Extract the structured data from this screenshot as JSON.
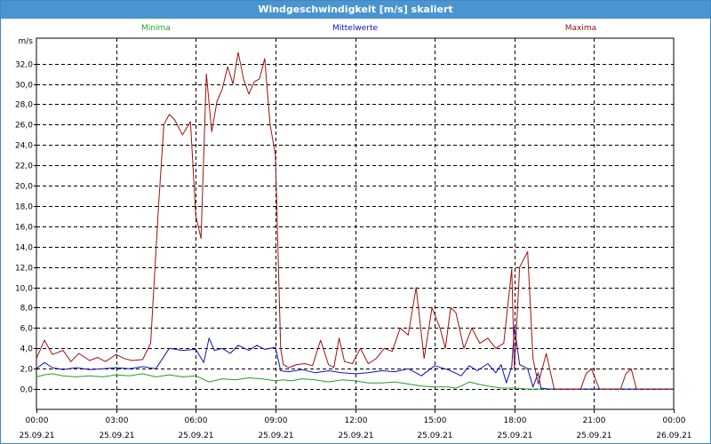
{
  "window": {
    "title": "Windgeschwindigkeit [m/s] skaliert"
  },
  "colors": {
    "min": "#22a022",
    "mean": "#1010c0",
    "max": "#a01010",
    "grid": "#000000"
  },
  "chart_data": {
    "type": "line",
    "title": "Windgeschwindigkeit [m/s] skaliert",
    "ylabel": "m/s",
    "xlabel": "",
    "ylim": [
      -2,
      34.5
    ],
    "xlim": [
      0,
      24
    ],
    "grid": true,
    "legend_position": "top",
    "yticks": [
      0,
      2,
      4,
      6,
      8,
      10,
      12,
      14,
      16,
      18,
      20,
      22,
      24,
      26,
      28,
      30,
      32
    ],
    "ytick_labels": [
      "0,0",
      "2,0",
      "4,0",
      "6,0",
      "8,0",
      "10,0",
      "12,0",
      "14,0",
      "16,0",
      "18,0",
      "20,0",
      "22,0",
      "24,0",
      "26,0",
      "28,0",
      "30,0",
      "32,0"
    ],
    "xticks": [
      {
        "hour": 0,
        "time": "00:00",
        "date": "25.09.21"
      },
      {
        "hour": 3,
        "time": "03:00",
        "date": "25.09.21"
      },
      {
        "hour": 6,
        "time": "06:00",
        "date": "25.09.21"
      },
      {
        "hour": 9,
        "time": "09:00",
        "date": "25.09.21"
      },
      {
        "hour": 12,
        "time": "12:00",
        "date": "25.09.21"
      },
      {
        "hour": 15,
        "time": "15:00",
        "date": "25.09.21"
      },
      {
        "hour": 18,
        "time": "18:00",
        "date": "25.09.21"
      },
      {
        "hour": 21,
        "time": "21:00",
        "date": "25.09.21"
      },
      {
        "hour": 24,
        "time": "00:00",
        "date": "26.09.21"
      }
    ],
    "series": [
      {
        "name": "Minima",
        "x": [
          0,
          0.3,
          0.6,
          1,
          1.5,
          2,
          2.5,
          3,
          3.5,
          4,
          4.5,
          5,
          5.5,
          6,
          6.5,
          7,
          7.5,
          8,
          8.5,
          9,
          9.3,
          9.6,
          10,
          10.5,
          11,
          11.5,
          12,
          12.5,
          13,
          13.5,
          14,
          14.5,
          15,
          15.5,
          15.8,
          16,
          16.3,
          16.6,
          17,
          17.5,
          18,
          18.5,
          19,
          20,
          21,
          22,
          23,
          24
        ],
        "y": [
          1.2,
          1.4,
          1.5,
          1.3,
          1.2,
          1.3,
          1.2,
          1.4,
          1.3,
          1.5,
          1.2,
          1.4,
          1.2,
          1.3,
          0.7,
          1.0,
          0.9,
          1.1,
          1.0,
          0.8,
          0.9,
          0.8,
          1.0,
          0.9,
          0.7,
          0.9,
          0.8,
          0.6,
          0.6,
          0.7,
          0.5,
          0.3,
          0.2,
          0.2,
          0.1,
          0.3,
          0.7,
          0.5,
          0.3,
          0.1,
          0.1,
          0.0,
          0.0,
          0.0,
          0.0,
          0.0,
          0.0,
          0.0
        ]
      },
      {
        "name": "Mittelwerte",
        "x": [
          0,
          0.3,
          0.6,
          1,
          1.5,
          2,
          2.5,
          3,
          3.5,
          4,
          4.5,
          5,
          5.5,
          6,
          6.3,
          6.5,
          6.7,
          7,
          7.3,
          7.6,
          8,
          8.3,
          8.6,
          9,
          9.2,
          9.5,
          10,
          10.5,
          11,
          11.5,
          12,
          12.5,
          13,
          13.5,
          14,
          14.5,
          15,
          15.5,
          16,
          16.3,
          16.6,
          17,
          17.3,
          17.5,
          17.7,
          17.9,
          18,
          18.2,
          18.5,
          18.7,
          18.9,
          19,
          19.3,
          20,
          21,
          22,
          23,
          24
        ],
        "y": [
          2.0,
          2.6,
          2.1,
          1.9,
          2.1,
          1.9,
          2.0,
          2.1,
          2.0,
          2.2,
          2.0,
          4.0,
          3.8,
          3.9,
          2.6,
          5.0,
          3.8,
          4.0,
          3.5,
          4.3,
          3.8,
          4.3,
          3.9,
          4.1,
          1.8,
          1.7,
          1.9,
          1.6,
          1.8,
          1.6,
          1.5,
          1.6,
          1.8,
          1.7,
          2.0,
          1.3,
          2.3,
          1.9,
          1.3,
          2.3,
          1.8,
          2.5,
          1.6,
          2.4,
          0.6,
          2.2,
          6.1,
          2.4,
          2.0,
          0.2,
          1.6,
          0.1,
          0.0,
          0.0,
          0.0,
          0.0,
          0.0,
          0.0
        ]
      },
      {
        "name": "Maxima",
        "x": [
          0,
          0.3,
          0.6,
          1,
          1.3,
          1.6,
          2,
          2.3,
          2.6,
          3,
          3.3,
          3.6,
          4,
          4.3,
          4.6,
          4.8,
          5.0,
          5.2,
          5.5,
          5.8,
          6.0,
          6.2,
          6.4,
          6.6,
          6.8,
          7.0,
          7.2,
          7.4,
          7.6,
          7.8,
          8.0,
          8.2,
          8.4,
          8.6,
          8.8,
          9.0,
          9.2,
          9.3,
          9.5,
          9.8,
          10.1,
          10.4,
          10.7,
          11.0,
          11.2,
          11.4,
          11.6,
          11.9,
          12.2,
          12.5,
          12.8,
          13.1,
          13.4,
          13.7,
          14.0,
          14.3,
          14.6,
          14.9,
          15.2,
          15.4,
          15.6,
          15.8,
          16.1,
          16.4,
          16.7,
          17.0,
          17.3,
          17.6,
          17.9,
          18.0,
          18.2,
          18.5,
          18.7,
          18.9,
          19.2,
          19.5,
          20.0,
          20.5,
          20.7,
          20.9,
          21.2,
          21.5,
          22.0,
          22.2,
          22.4,
          22.6,
          23.0,
          23.5,
          24.0
        ],
        "y": [
          3.0,
          4.8,
          3.4,
          3.8,
          2.7,
          3.5,
          2.8,
          3.1,
          2.7,
          3.4,
          3.0,
          2.8,
          2.9,
          4.5,
          18.0,
          26.0,
          27.0,
          26.5,
          25.0,
          26.3,
          17.0,
          14.8,
          31.0,
          25.3,
          28.3,
          29.5,
          31.7,
          30.0,
          33.1,
          30.5,
          29.0,
          30.2,
          30.5,
          32.5,
          26.0,
          23.0,
          4.0,
          2.4,
          2.1,
          2.4,
          2.5,
          2.3,
          4.8,
          2.4,
          2.1,
          5.0,
          2.7,
          2.5,
          4.0,
          2.5,
          3.0,
          4.0,
          3.7,
          6.0,
          5.3,
          10.0,
          3.0,
          8.0,
          6.0,
          4.0,
          8.0,
          7.5,
          4.0,
          6.0,
          4.5,
          5.0,
          4.0,
          4.5,
          11.8,
          2.0,
          12.0,
          13.5,
          3.0,
          0.5,
          3.5,
          0.0,
          0.0,
          0.0,
          1.5,
          2.0,
          0.0,
          0.0,
          0.0,
          1.5,
          2.0,
          0.0,
          0.0,
          0.0,
          0.0
        ]
      }
    ]
  }
}
